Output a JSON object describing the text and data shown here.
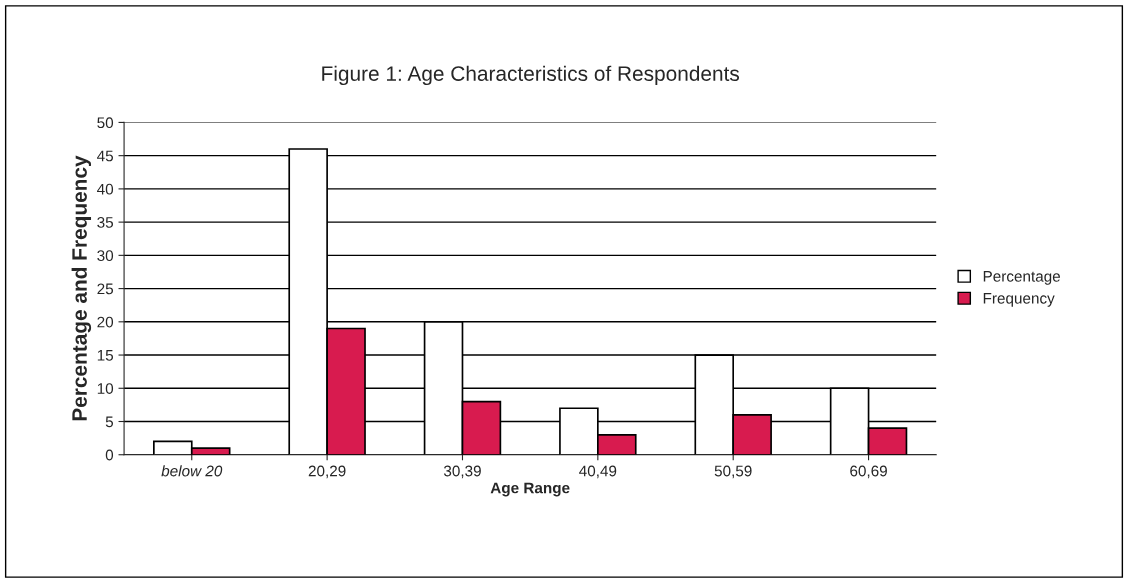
{
  "chart_data": {
    "type": "bar",
    "title": "Figure 1: Age Characteristics of Respondents",
    "xlabel": "Age Range",
    "ylabel": "Percentage and Frequency",
    "categories": [
      "below 20",
      "20,29",
      "30,39",
      "40,49",
      "50,59",
      "60,69"
    ],
    "series": [
      {
        "name": "Percentage",
        "color": "#ffffff",
        "values": [
          2,
          46,
          20,
          7,
          15,
          10
        ]
      },
      {
        "name": "Frequency",
        "color": "#d81b4f",
        "values": [
          1,
          19,
          8,
          3,
          6,
          4
        ]
      }
    ],
    "ylim": [
      0,
      50
    ],
    "yticks": [
      0,
      5,
      10,
      15,
      20,
      25,
      30,
      35,
      40,
      45,
      50
    ],
    "grid": "y",
    "legend": "right"
  }
}
